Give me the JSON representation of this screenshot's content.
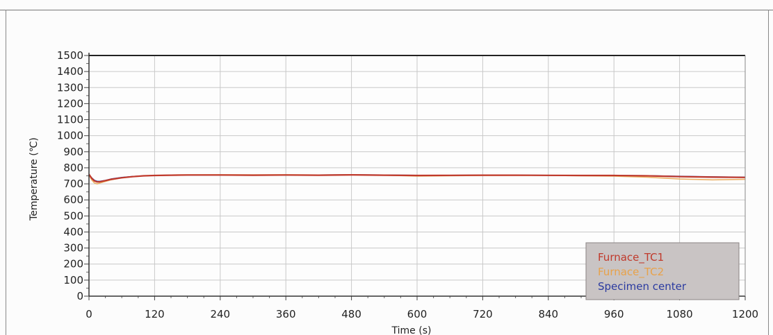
{
  "chart_data": {
    "type": "line",
    "xlabel": "Time (s)",
    "ylabel": "Temperature (℃)",
    "xlim": [
      0,
      1200
    ],
    "ylim": [
      0,
      1500
    ],
    "xticks": [
      0,
      120,
      240,
      360,
      480,
      600,
      720,
      840,
      960,
      1080,
      1200
    ],
    "yticks": [
      0,
      100,
      200,
      300,
      400,
      500,
      600,
      700,
      800,
      900,
      1000,
      1100,
      1200,
      1300,
      1400,
      1500
    ],
    "grid": true,
    "legend_position": "bottom-right",
    "series": [
      {
        "name": "Furnace_TC1",
        "color": "#c0392b",
        "x": [
          0,
          5,
          10,
          15,
          20,
          30,
          40,
          60,
          80,
          100,
          120,
          150,
          180,
          240,
          300,
          360,
          420,
          480,
          540,
          600,
          660,
          720,
          780,
          840,
          900,
          960,
          1020,
          1080,
          1140,
          1200
        ],
        "y": [
          760,
          735,
          718,
          712,
          713,
          720,
          728,
          738,
          745,
          750,
          752,
          754,
          755,
          755,
          754,
          755,
          754,
          756,
          754,
          752,
          753,
          754,
          754,
          753,
          752,
          752,
          750,
          745,
          742,
          740
        ]
      },
      {
        "name": "Furnace_TC2",
        "color": "#e8a24a",
        "x": [
          0,
          5,
          10,
          15,
          20,
          30,
          40,
          60,
          80,
          100,
          120,
          150,
          180,
          240,
          300,
          360,
          420,
          480,
          540,
          600,
          660,
          720,
          780,
          840,
          900,
          960,
          1020,
          1080,
          1140,
          1200
        ],
        "y": [
          755,
          725,
          705,
          700,
          705,
          715,
          725,
          738,
          745,
          750,
          752,
          755,
          756,
          757,
          756,
          757,
          755,
          757,
          754,
          748,
          750,
          752,
          753,
          752,
          750,
          748,
          742,
          730,
          725,
          728
        ]
      },
      {
        "name": "Specimen center",
        "color": "#2a3aa0",
        "x": [
          0,
          5,
          10,
          15,
          20,
          30,
          40,
          60,
          80,
          100,
          120,
          150,
          180,
          240,
          300,
          360,
          420,
          480,
          540,
          600,
          660,
          720,
          780,
          840,
          900,
          960,
          1020,
          1080,
          1140,
          1200
        ],
        "y": [
          758,
          738,
          722,
          716,
          716,
          722,
          730,
          740,
          746,
          750,
          752,
          754,
          755,
          755,
          755,
          755,
          755,
          756,
          755,
          753,
          753,
          754,
          754,
          753,
          752,
          752,
          751,
          747,
          744,
          742
        ]
      }
    ]
  }
}
